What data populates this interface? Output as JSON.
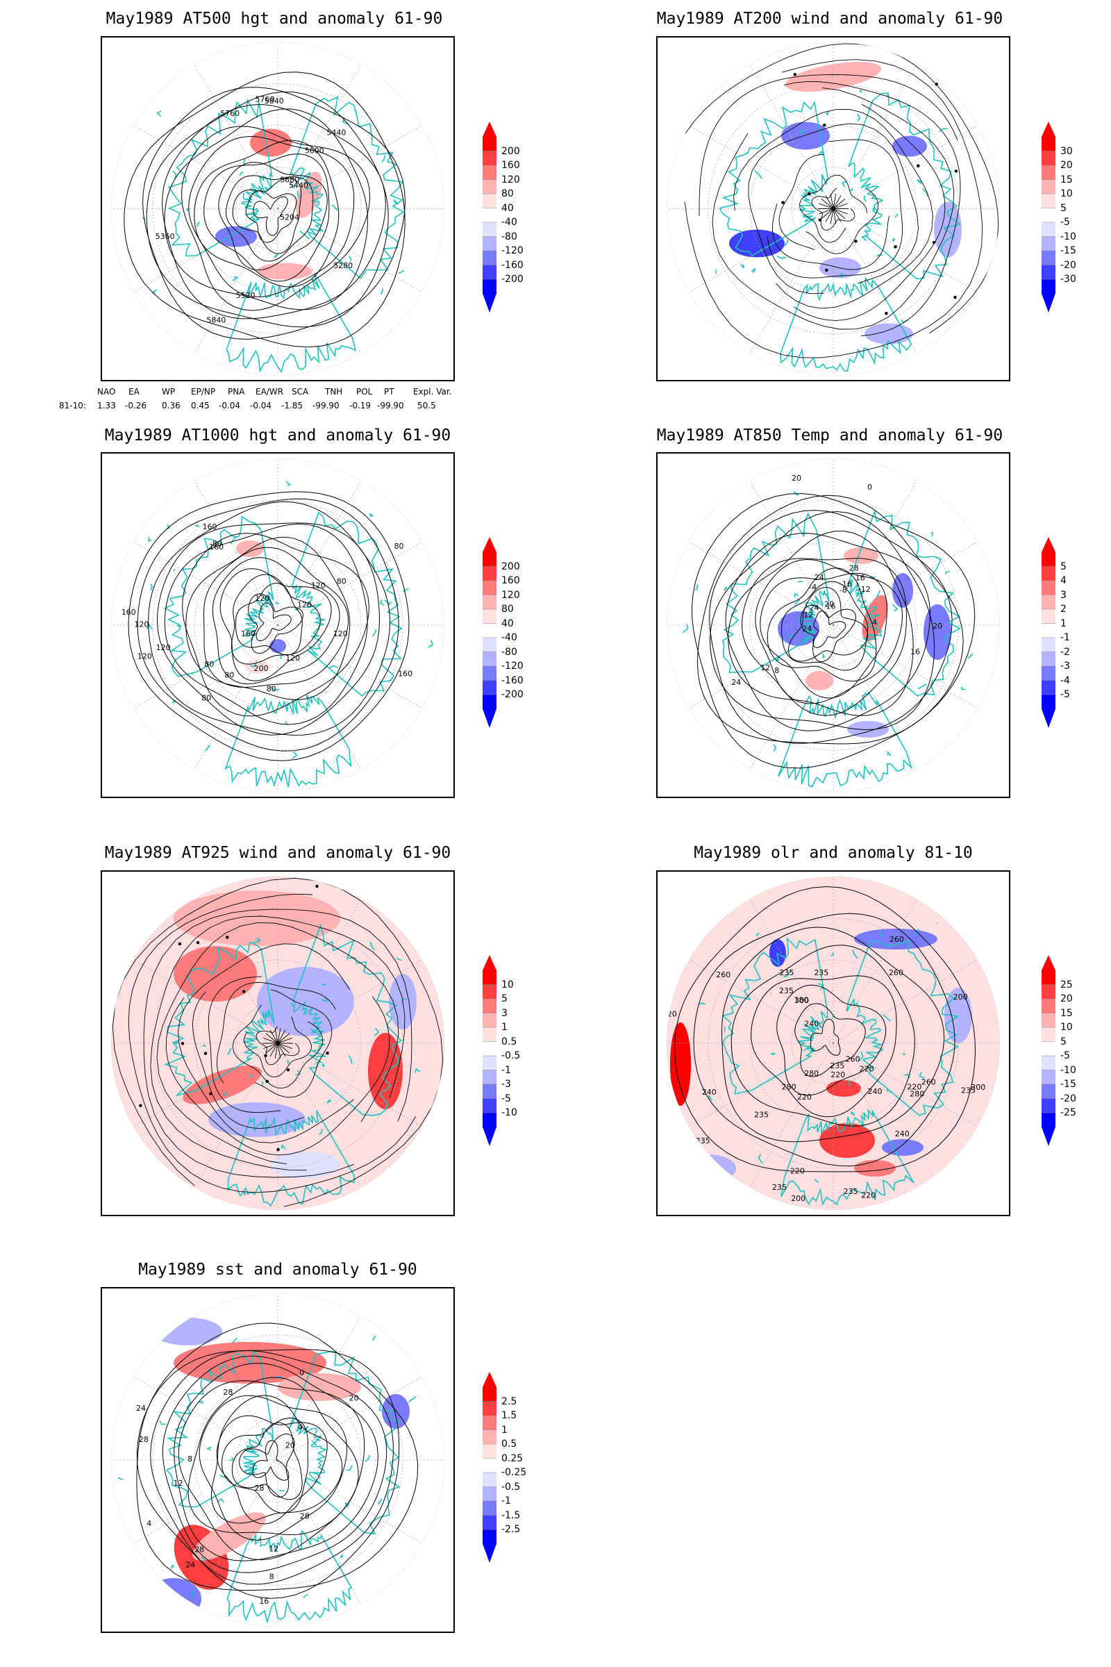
{
  "panels": [
    {
      "id": "p500",
      "title": "May1989 AT500 hgt and anomaly 61-90",
      "colorbar": [
        "200",
        "160",
        "120",
        "80",
        "40",
        "-40",
        "-80",
        "-120",
        "-160",
        "-200"
      ],
      "contour_labels": [
        "5840",
        "5760",
        "5520",
        "5440",
        "5440",
        "5360",
        "5280",
        "5204",
        "5600",
        "5680",
        "5760",
        "5840"
      ]
    },
    {
      "id": "p200",
      "title": "May1989 AT200 wind and anomaly 61-90",
      "colorbar": [
        "30",
        "20",
        "15",
        "10",
        "5",
        "-5",
        "-10",
        "-15",
        "-20",
        "-30"
      ],
      "contour_labels": []
    },
    {
      "id": "p1000",
      "title": "May1989 AT1000 hgt and anomaly 61-90",
      "colorbar": [
        "200",
        "160",
        "120",
        "80",
        "40",
        "-40",
        "-80",
        "-120",
        "-160",
        "-200"
      ],
      "contour_labels": [
        "80",
        "120",
        "160",
        "200",
        "160",
        "120",
        "120",
        "160",
        "80",
        "80",
        "120",
        "160",
        "80",
        "120",
        "80",
        "120",
        "160",
        "120",
        "80",
        "80",
        "120"
      ]
    },
    {
      "id": "p850",
      "title": "May1989 AT850 Temp and anomaly 61-90",
      "colorbar": [
        "5",
        "4",
        "3",
        "2",
        "1",
        "-1",
        "-2",
        "-3",
        "-4",
        "-5"
      ],
      "contour_labels": [
        "16",
        "12",
        "8",
        "16",
        "24",
        "-12",
        "-8",
        "-4",
        "0",
        "4",
        "16",
        "24",
        "28",
        "12",
        "20",
        "16",
        "20",
        "24",
        "20",
        "24"
      ]
    },
    {
      "id": "p925",
      "title": "May1989 AT925 wind and anomaly 61-90",
      "colorbar": [
        "10",
        "5",
        "3",
        "1",
        "0.5",
        "-0.5",
        "-1",
        "-3",
        "-5",
        "-10"
      ],
      "contour_labels": []
    },
    {
      "id": "polr",
      "title": "May1989 olr and anomaly 81-10",
      "colorbar": [
        "25",
        "20",
        "15",
        "10",
        "5",
        "-5",
        "-10",
        "-15",
        "-20",
        "-25"
      ],
      "contour_labels": [
        "260",
        "235",
        "220",
        "235",
        "240",
        "260",
        "235",
        "280",
        "220",
        "200",
        "235",
        "220",
        "260",
        "240",
        "220",
        "280",
        "235",
        "180",
        "240",
        "235",
        "300",
        "220",
        "240",
        "260",
        "235",
        "280",
        "300",
        "235",
        "220",
        "260",
        "235",
        "200",
        "220"
      ]
    },
    {
      "id": "psst",
      "title": "May1989 sst and anomaly 61-90",
      "colorbar": [
        "2.5",
        "1.5",
        "1",
        "0.5",
        "0.25",
        "-0.25",
        "-0.5",
        "-1",
        "-1.5",
        "-2.5"
      ],
      "contour_labels": [
        "28",
        "28",
        "24",
        "20",
        "16",
        "12",
        "8",
        "4",
        "0",
        "28",
        "4",
        "8",
        "12",
        "20",
        "24",
        "28",
        "28"
      ]
    }
  ],
  "index_table": {
    "headers": [
      "NAO",
      "EA",
      "WP",
      "EP/NP",
      "PNA",
      "EA/WR",
      "SCA",
      "TNH",
      "POL",
      "PT",
      "Expl. Var."
    ],
    "row_label": "81-10:",
    "values": [
      "1.33",
      "-0.26",
      "0.36",
      "0.45",
      "-0.04",
      "-0.04",
      "-1.85",
      "-99.90",
      "-0.19",
      "-99.90",
      "50.5"
    ]
  },
  "colors": {
    "positive": [
      "#ff0000",
      "#ff3f3f",
      "#ff7a7a",
      "#ffb3b3",
      "#ffe0e0"
    ],
    "neutral": "#ffffff",
    "negative": [
      "#e0e0ff",
      "#b3b3ff",
      "#7a7aff",
      "#3f3fff",
      "#0000ff"
    ],
    "coastline": "#20c0c0",
    "contour": "#000000",
    "grid": "#aaaaaa"
  }
}
